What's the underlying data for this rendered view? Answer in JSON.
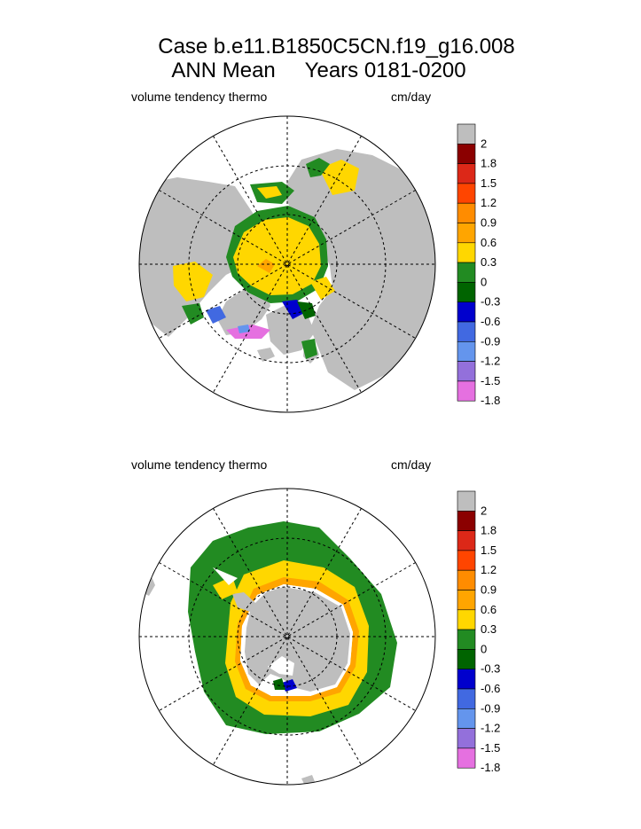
{
  "title": {
    "line1": "Case b.e11.B1850C5CN.f19_g16.008",
    "line2": "ANN Mean     Years 0181-0200"
  },
  "colors": {
    "ocean_bg": "#ffffff",
    "land": "#bebebe",
    "levels": [
      "#e570e0",
      "#9370db",
      "#6495ed",
      "#4169e1",
      "#0000cd",
      "#006400",
      "#228b22",
      "#ffd700",
      "#ffa500",
      "#ff8c00",
      "#ff4500",
      "#dc2818",
      "#8b0000"
    ]
  },
  "chart_data": [
    {
      "type": "heatmap",
      "name": "north-polar-map",
      "hemisphere": "north",
      "variable_label": "volume tendency thermo",
      "units": "cm/day",
      "colorbar_levels": [
        "2",
        "1.8",
        "1.5",
        "1.2",
        "0.9",
        "0.6",
        "0.3",
        "0",
        "-0.3",
        "-0.6",
        "-0.9",
        "-1.2",
        "-1.5",
        "-1.8"
      ]
    },
    {
      "type": "heatmap",
      "name": "south-polar-map",
      "hemisphere": "south",
      "variable_label": "volume tendency thermo",
      "units": "cm/day",
      "colorbar_levels": [
        "2",
        "1.8",
        "1.5",
        "1.2",
        "0.9",
        "0.6",
        "0.3",
        "0",
        "-0.3",
        "-0.6",
        "-0.9",
        "-1.2",
        "-1.5",
        "-1.8"
      ]
    }
  ]
}
